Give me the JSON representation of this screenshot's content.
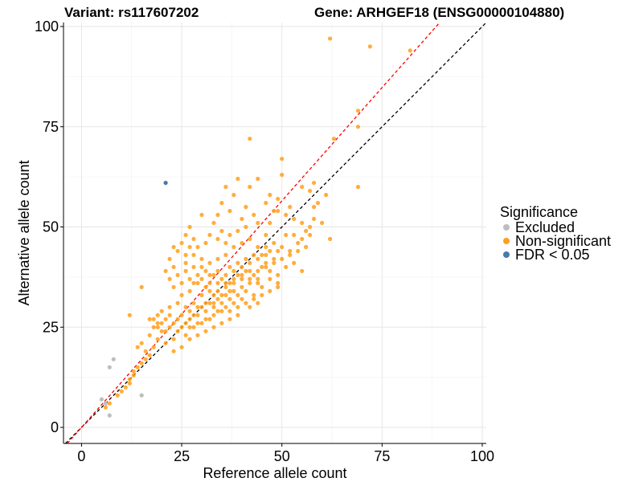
{
  "titles": {
    "variant": "Variant: rs117607202",
    "gene": "Gene: ARHGEF18 (ENSG00000104880)"
  },
  "legend": {
    "title": "Significance",
    "items": [
      {
        "label": "Excluded",
        "color": "#bebebe"
      },
      {
        "label": "Non-significant",
        "color": "#ff9f1c"
      },
      {
        "label": "FDR < 0.05",
        "color": "#4a78a8"
      }
    ]
  },
  "chart_data": {
    "type": "scatter",
    "xlabel": "Reference allele count",
    "ylabel": "Alternative allele count",
    "xlim": [
      -4.5,
      101
    ],
    "ylim": [
      -4,
      101
    ],
    "xticks": [
      0,
      25,
      50,
      75,
      100
    ],
    "yticks": [
      0,
      25,
      50,
      75,
      100
    ],
    "grid": true,
    "legend_position": "right",
    "reference_lines": [
      {
        "name": "identity",
        "slope": 1.0,
        "intercept": 0,
        "color": "#000000",
        "style": "dashed"
      },
      {
        "name": "fit",
        "slope": 1.13,
        "intercept": 0,
        "color": "#ff0000",
        "style": "dashed"
      }
    ],
    "series": [
      {
        "name": "Excluded",
        "color": "#bebebe",
        "points": [
          [
            5,
            7
          ],
          [
            6,
            6
          ],
          [
            7,
            15
          ],
          [
            7,
            3
          ],
          [
            8,
            17
          ],
          [
            15,
            8
          ]
        ]
      },
      {
        "name": "FDR < 0.05",
        "color": "#4a78a8",
        "points": [
          [
            21,
            61
          ]
        ]
      },
      {
        "name": "Non-significant",
        "color": "#ff9f1c",
        "points": [
          [
            62,
            97
          ],
          [
            72,
            95
          ],
          [
            82,
            94
          ],
          [
            69,
            79
          ],
          [
            69,
            75
          ],
          [
            63,
            72
          ],
          [
            69,
            60
          ],
          [
            62,
            47
          ],
          [
            50,
            67
          ],
          [
            50,
            63
          ],
          [
            58,
            61
          ],
          [
            55,
            60
          ],
          [
            57,
            59
          ],
          [
            49,
            57
          ],
          [
            47,
            58
          ],
          [
            48,
            54
          ],
          [
            47,
            51
          ],
          [
            52,
            55
          ],
          [
            46,
            56
          ],
          [
            42,
            72
          ],
          [
            44,
            62
          ],
          [
            42,
            60
          ],
          [
            41,
            55
          ],
          [
            43,
            53
          ],
          [
            40,
            52
          ],
          [
            38,
            58
          ],
          [
            36,
            60
          ],
          [
            39,
            62
          ],
          [
            37,
            54
          ],
          [
            35,
            56
          ],
          [
            34,
            53
          ],
          [
            33,
            51
          ],
          [
            30,
            53
          ],
          [
            27,
            50
          ],
          [
            26,
            48
          ],
          [
            29,
            45
          ],
          [
            31,
            46
          ],
          [
            32,
            48
          ],
          [
            35,
            49
          ],
          [
            37,
            48
          ],
          [
            39,
            49
          ],
          [
            41,
            50
          ],
          [
            44,
            51
          ],
          [
            46,
            48
          ],
          [
            48,
            46
          ],
          [
            50,
            45
          ],
          [
            49,
            44
          ],
          [
            47,
            44
          ],
          [
            45,
            43
          ],
          [
            43,
            43
          ],
          [
            41,
            42
          ],
          [
            39,
            41
          ],
          [
            37,
            40
          ],
          [
            36,
            43
          ],
          [
            34,
            42
          ],
          [
            32,
            41
          ],
          [
            30,
            42
          ],
          [
            28,
            43
          ],
          [
            26,
            41
          ],
          [
            24,
            44
          ],
          [
            23,
            40
          ],
          [
            22,
            42
          ],
          [
            21,
            39
          ],
          [
            22,
            37
          ],
          [
            24,
            38
          ],
          [
            25,
            36
          ],
          [
            27,
            37
          ],
          [
            29,
            38
          ],
          [
            31,
            39
          ],
          [
            33,
            38
          ],
          [
            35,
            37
          ],
          [
            37,
            36
          ],
          [
            39,
            38
          ],
          [
            41,
            39
          ],
          [
            43,
            38
          ],
          [
            45,
            40
          ],
          [
            47,
            39
          ],
          [
            49,
            38
          ],
          [
            51,
            40
          ],
          [
            53,
            41
          ],
          [
            56,
            45
          ],
          [
            54,
            44
          ],
          [
            52,
            43
          ],
          [
            55,
            39
          ],
          [
            58,
            55
          ],
          [
            58,
            52
          ],
          [
            60,
            51
          ],
          [
            59,
            56
          ],
          [
            61,
            58
          ],
          [
            56,
            49
          ],
          [
            51,
            48
          ],
          [
            48,
            41
          ],
          [
            46,
            40
          ],
          [
            44,
            36
          ],
          [
            42,
            37
          ],
          [
            40,
            35
          ],
          [
            38,
            34
          ],
          [
            36,
            33
          ],
          [
            34,
            32
          ],
          [
            32,
            34
          ],
          [
            30,
            33
          ],
          [
            28,
            31
          ],
          [
            26,
            30
          ],
          [
            24,
            31
          ],
          [
            22,
            30
          ],
          [
            20,
            29
          ],
          [
            19,
            28
          ],
          [
            18,
            27
          ],
          [
            20,
            26
          ],
          [
            22,
            25
          ],
          [
            24,
            24
          ],
          [
            26,
            23
          ],
          [
            28,
            25
          ],
          [
            30,
            26
          ],
          [
            32,
            27
          ],
          [
            34,
            29
          ],
          [
            36,
            30
          ],
          [
            38,
            31
          ],
          [
            40,
            32
          ],
          [
            42,
            30
          ],
          [
            44,
            31
          ],
          [
            39,
            28
          ],
          [
            37,
            27
          ],
          [
            35,
            26
          ],
          [
            33,
            25
          ],
          [
            31,
            24
          ],
          [
            29,
            23
          ],
          [
            27,
            22
          ],
          [
            25,
            20
          ],
          [
            23,
            19
          ],
          [
            21,
            21
          ],
          [
            19,
            22
          ],
          [
            17,
            23
          ],
          [
            18,
            20
          ],
          [
            17,
            18
          ],
          [
            16,
            19
          ],
          [
            15,
            21
          ],
          [
            14,
            20
          ],
          [
            12,
            28
          ],
          [
            15,
            35
          ],
          [
            17,
            27
          ],
          [
            19,
            25
          ],
          [
            21,
            27
          ],
          [
            23,
            26
          ],
          [
            25,
            28
          ],
          [
            27,
            27
          ],
          [
            29,
            28
          ],
          [
            31,
            29
          ],
          [
            33,
            30
          ],
          [
            35,
            31
          ],
          [
            37,
            32
          ],
          [
            33,
            33
          ],
          [
            31,
            35
          ],
          [
            29,
            36
          ],
          [
            27,
            34
          ],
          [
            25,
            33
          ],
          [
            23,
            35
          ],
          [
            22,
            28
          ],
          [
            20,
            24
          ],
          [
            18,
            25
          ],
          [
            28,
            36
          ],
          [
            30,
            37
          ],
          [
            32,
            38
          ],
          [
            34,
            39
          ],
          [
            36,
            38
          ],
          [
            38,
            39
          ],
          [
            40,
            40
          ],
          [
            42,
            41
          ],
          [
            44,
            42
          ],
          [
            46,
            43
          ],
          [
            30,
            40
          ],
          [
            28,
            40
          ],
          [
            26,
            39
          ],
          [
            32,
            36
          ],
          [
            34,
            36
          ],
          [
            36,
            36
          ],
          [
            38,
            37
          ],
          [
            40,
            37
          ],
          [
            42,
            36
          ],
          [
            44,
            37
          ],
          [
            27,
            29
          ],
          [
            29,
            30
          ],
          [
            31,
            31
          ],
          [
            33,
            31
          ],
          [
            35,
            33
          ],
          [
            37,
            34
          ],
          [
            39,
            33
          ],
          [
            41,
            34
          ],
          [
            43,
            33
          ],
          [
            45,
            35
          ],
          [
            47,
            34
          ],
          [
            49,
            36
          ],
          [
            24,
            27
          ],
          [
            26,
            26
          ],
          [
            28,
            28
          ],
          [
            30,
            30
          ],
          [
            32,
            31
          ],
          [
            34,
            34
          ],
          [
            36,
            35
          ],
          [
            38,
            36
          ],
          [
            40,
            38
          ],
          [
            42,
            39
          ],
          [
            44,
            39
          ],
          [
            46,
            41
          ],
          [
            48,
            42
          ],
          [
            50,
            42
          ],
          [
            52,
            44
          ],
          [
            54,
            46
          ],
          [
            23,
            22
          ],
          [
            21,
            24
          ],
          [
            19,
            26
          ],
          [
            25,
            25
          ],
          [
            27,
            25
          ],
          [
            29,
            26
          ],
          [
            31,
            27
          ],
          [
            33,
            28
          ],
          [
            35,
            29
          ],
          [
            37,
            29
          ],
          [
            39,
            30
          ],
          [
            41,
            31
          ],
          [
            43,
            32
          ],
          [
            45,
            33
          ],
          [
            47,
            37
          ],
          [
            49,
            35
          ],
          [
            13,
            13
          ],
          [
            14,
            15
          ],
          [
            12,
            12
          ],
          [
            11,
            10
          ],
          [
            12,
            11
          ],
          [
            13,
            14
          ],
          [
            15,
            16
          ],
          [
            16,
            17
          ],
          [
            10,
            9
          ],
          [
            9,
            8
          ],
          [
            6,
            5
          ],
          [
            7,
            6
          ],
          [
            27,
            45
          ],
          [
            25,
            46
          ],
          [
            23,
            45
          ],
          [
            26,
            43
          ],
          [
            28,
            47
          ],
          [
            34,
            47
          ],
          [
            36,
            46
          ],
          [
            38,
            45
          ],
          [
            40,
            46
          ],
          [
            42,
            47
          ],
          [
            44,
            45
          ],
          [
            46,
            45
          ],
          [
            49,
            54
          ],
          [
            51,
            53
          ],
          [
            53,
            52
          ],
          [
            55,
            51
          ],
          [
            57,
            50
          ],
          [
            53,
            48
          ],
          [
            55,
            47
          ],
          [
            57,
            48
          ]
        ]
      }
    ]
  }
}
